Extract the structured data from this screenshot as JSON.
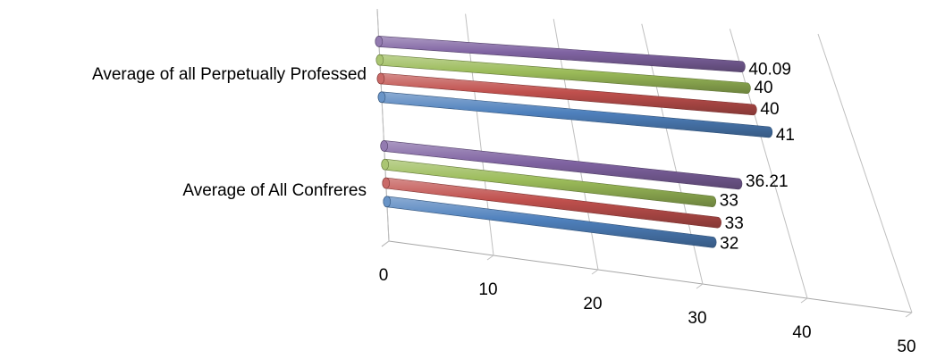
{
  "chart_data": {
    "type": "bar",
    "orientation": "horizontal",
    "style": "3d-cylinder",
    "title": "",
    "xlabel": "",
    "ylabel": "",
    "xlim": [
      0,
      50
    ],
    "x_ticks": [
      "0",
      "10",
      "20",
      "30",
      "40",
      "50"
    ],
    "grid": true,
    "legend": "none",
    "categories": [
      "Average of All Confreres",
      "Average of all Perpetually Professed"
    ],
    "series": [
      {
        "color": "#4f81bd",
        "values": [
          32,
          41
        ]
      },
      {
        "color": "#c0504d",
        "values": [
          33,
          40
        ]
      },
      {
        "color": "#9bbb59",
        "values": [
          33,
          40
        ]
      },
      {
        "color": "#8064a2",
        "values": [
          36.21,
          40.09
        ]
      }
    ]
  }
}
